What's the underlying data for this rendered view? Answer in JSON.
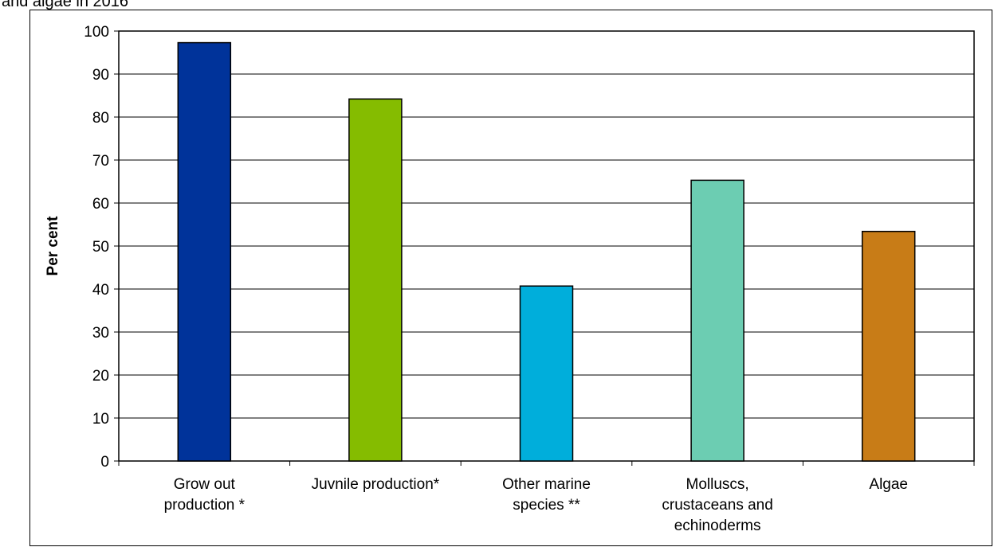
{
  "title_fragment": "and algae in 2016",
  "chart_data": {
    "type": "bar",
    "title": "",
    "ylabel": "Per cent",
    "xlabel": "",
    "ylim": [
      0,
      100
    ],
    "yticks": [
      0,
      10,
      20,
      30,
      40,
      50,
      60,
      70,
      80,
      90,
      100
    ],
    "grid": true,
    "categories": [
      [
        "Grow out",
        "production *"
      ],
      [
        "Juvnile production*"
      ],
      [
        "Other marine",
        "species **"
      ],
      [
        "Molluscs,",
        "crustaceans and",
        "echinoderms"
      ],
      [
        "Algae"
      ]
    ],
    "values": [
      97.3,
      84.2,
      40.7,
      65.3,
      53.4
    ],
    "colors": [
      "#00339A",
      "#85BC00",
      "#00AEDB",
      "#6CCDB2",
      "#C87C17"
    ]
  }
}
